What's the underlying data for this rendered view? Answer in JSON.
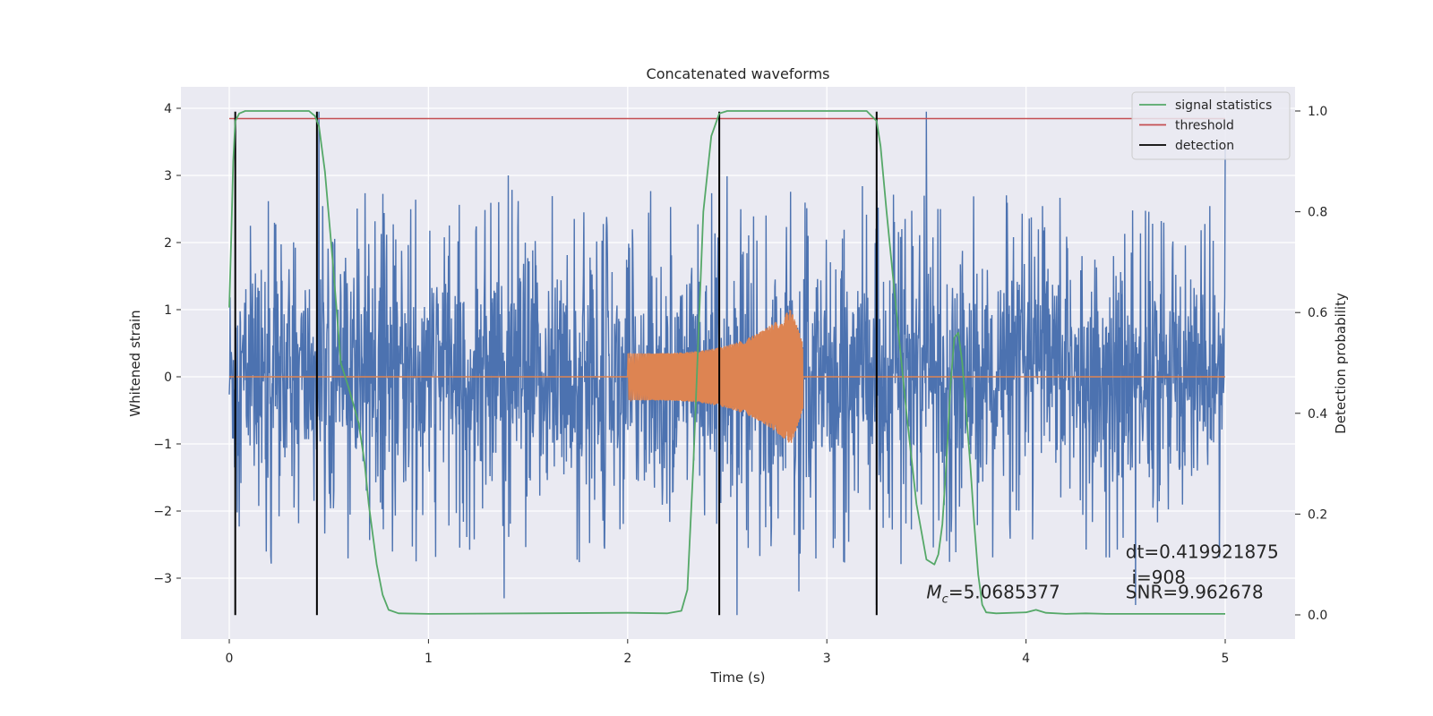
{
  "chart_data": {
    "type": "line",
    "title": "Concatenated waveforms",
    "xlabel": "Time (s)",
    "ylabel_left": "Whitened strain",
    "ylabel_right": "Detection probability",
    "xlim": [
      -0.25,
      5.35
    ],
    "ylim_left": [
      -3.9,
      4.3
    ],
    "ylim_right": [
      -0.05,
      1.04
    ],
    "xticks": [
      0,
      1,
      2,
      3,
      4,
      5
    ],
    "xtick_labels": [
      "0",
      "1",
      "2",
      "3",
      "4",
      "5"
    ],
    "yticks_left": [
      4,
      3,
      2,
      1,
      0,
      -1,
      -2,
      -3
    ],
    "ytick_labels_left": [
      "4",
      "3",
      "2",
      "1",
      "0",
      "−1",
      "−2",
      "−3"
    ],
    "yticks_right": [
      1.0,
      0.8,
      0.6,
      0.4,
      0.2,
      0.0
    ],
    "ytick_labels_right": [
      "1.0",
      "0.8",
      "0.6",
      "0.4",
      "0.2",
      "0.0"
    ],
    "grid": true,
    "legend_position": "top-right",
    "series": [
      {
        "name": "",
        "kind": "whitened-strain-noise",
        "axis": "left",
        "color": "#4c72b0",
        "x_range": [
          0,
          5
        ],
        "typical_range": [
          -2.5,
          2.5
        ],
        "peaks": [
          {
            "x": 0.45,
            "y": 3.95
          },
          {
            "x": 1.4,
            "y": 3.0
          },
          {
            "x": 3.5,
            "y": 3.95
          },
          {
            "x": 5.0,
            "y": 3.4
          },
          {
            "x": 2.55,
            "y": -3.55
          },
          {
            "x": 3.25,
            "y": -3.4
          },
          {
            "x": 4.55,
            "y": -3.4
          }
        ]
      },
      {
        "name": "",
        "kind": "injected-chirp",
        "axis": "left",
        "color": "#dd8452",
        "x_range": [
          0,
          5
        ],
        "chirp_start": 2.0,
        "chirp_end": 2.88,
        "amplitude_start": 0.35,
        "amplitude_peak": 1.2
      },
      {
        "name": "signal statistics",
        "axis": "right",
        "color": "#55a868",
        "x": [
          0.0,
          0.01,
          0.02,
          0.03,
          0.05,
          0.08,
          0.12,
          0.2,
          0.3,
          0.4,
          0.43,
          0.45,
          0.48,
          0.52,
          0.56,
          0.6,
          0.65,
          0.68,
          0.7,
          0.74,
          0.77,
          0.8,
          0.85,
          1.0,
          1.5,
          2.0,
          2.2,
          2.27,
          2.3,
          2.33,
          2.38,
          2.42,
          2.46,
          2.5,
          2.6,
          2.8,
          3.0,
          3.2,
          3.25,
          3.27,
          3.3,
          3.35,
          3.4,
          3.45,
          3.5,
          3.54,
          3.56,
          3.58,
          3.6,
          3.62,
          3.64,
          3.66,
          3.68,
          3.7,
          3.72,
          3.74,
          3.76,
          3.78,
          3.8,
          3.85,
          4.0,
          4.05,
          4.1,
          4.2,
          4.3,
          4.4,
          5.0
        ],
        "y": [
          0.61,
          0.75,
          0.9,
          0.98,
          0.995,
          1.0,
          1.0,
          1.0,
          1.0,
          1.0,
          0.99,
          0.97,
          0.88,
          0.7,
          0.5,
          0.45,
          0.38,
          0.3,
          0.22,
          0.1,
          0.04,
          0.01,
          0.003,
          0.002,
          0.003,
          0.004,
          0.003,
          0.008,
          0.05,
          0.3,
          0.8,
          0.95,
          0.995,
          1.0,
          1.0,
          1.0,
          1.0,
          1.0,
          0.98,
          0.93,
          0.8,
          0.6,
          0.4,
          0.22,
          0.11,
          0.1,
          0.12,
          0.18,
          0.3,
          0.45,
          0.55,
          0.56,
          0.5,
          0.4,
          0.3,
          0.18,
          0.08,
          0.02,
          0.005,
          0.003,
          0.005,
          0.01,
          0.004,
          0.002,
          0.003,
          0.002,
          0.002
        ]
      },
      {
        "name": "threshold",
        "axis": "right",
        "color": "#c44e52",
        "x": [
          0.0,
          5.0
        ],
        "y": [
          0.985,
          0.985
        ]
      },
      {
        "name": "detection",
        "axis": "left",
        "color": "#000000",
        "vlines_x": [
          0.03,
          0.44,
          2.46,
          3.25
        ],
        "y_range": [
          -3.55,
          3.95
        ]
      }
    ],
    "annotations": {
      "mc": "=5.0685377",
      "dt": "dt=0.419921875",
      "i": "i=908",
      "snr": "SNR=9.962678"
    },
    "annotation_positions": {
      "mc": [
        3.5,
        -3.3
      ],
      "dt": [
        4.5,
        -2.7
      ],
      "i": [
        4.53,
        -3.08
      ],
      "snr": [
        4.5,
        -3.3
      ]
    }
  }
}
